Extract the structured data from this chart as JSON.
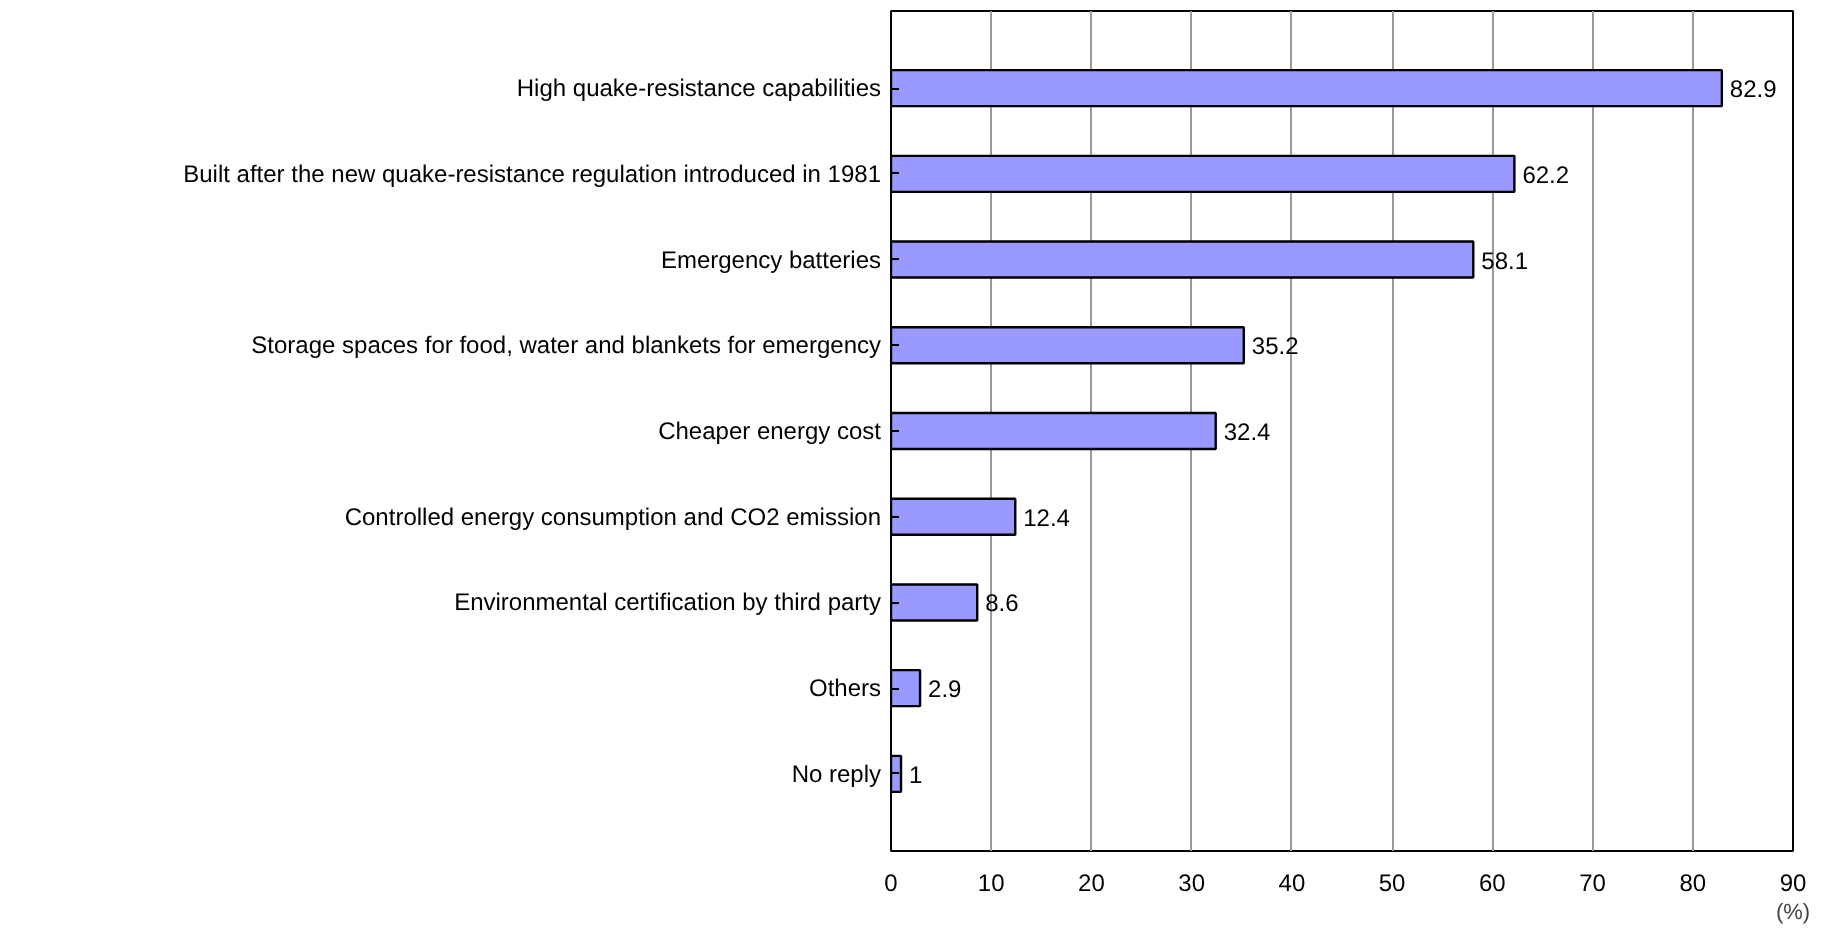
{
  "chart_data": {
    "type": "bar",
    "orientation": "horizontal",
    "xlabel": "(%)",
    "categories": [
      "High quake-resistance capabilities",
      "Built after the new quake-resistance regulation introduced in 1981",
      "Emergency batteries",
      "Storage spaces for food, water and blankets for emergency",
      "Cheaper energy cost",
      "Controlled energy consumption and CO2 emission",
      "Environmental certification by third party",
      "Others",
      "No reply"
    ],
    "values": [
      82.9,
      62.2,
      58.1,
      35.2,
      32.4,
      12.4,
      8.6,
      2.9,
      1
    ],
    "color": "#9999ff",
    "xlim": [
      0,
      90
    ],
    "xticks": [
      0,
      10,
      20,
      30,
      40,
      50,
      60,
      70,
      80,
      90
    ],
    "grid": "x",
    "data_labels": true
  }
}
